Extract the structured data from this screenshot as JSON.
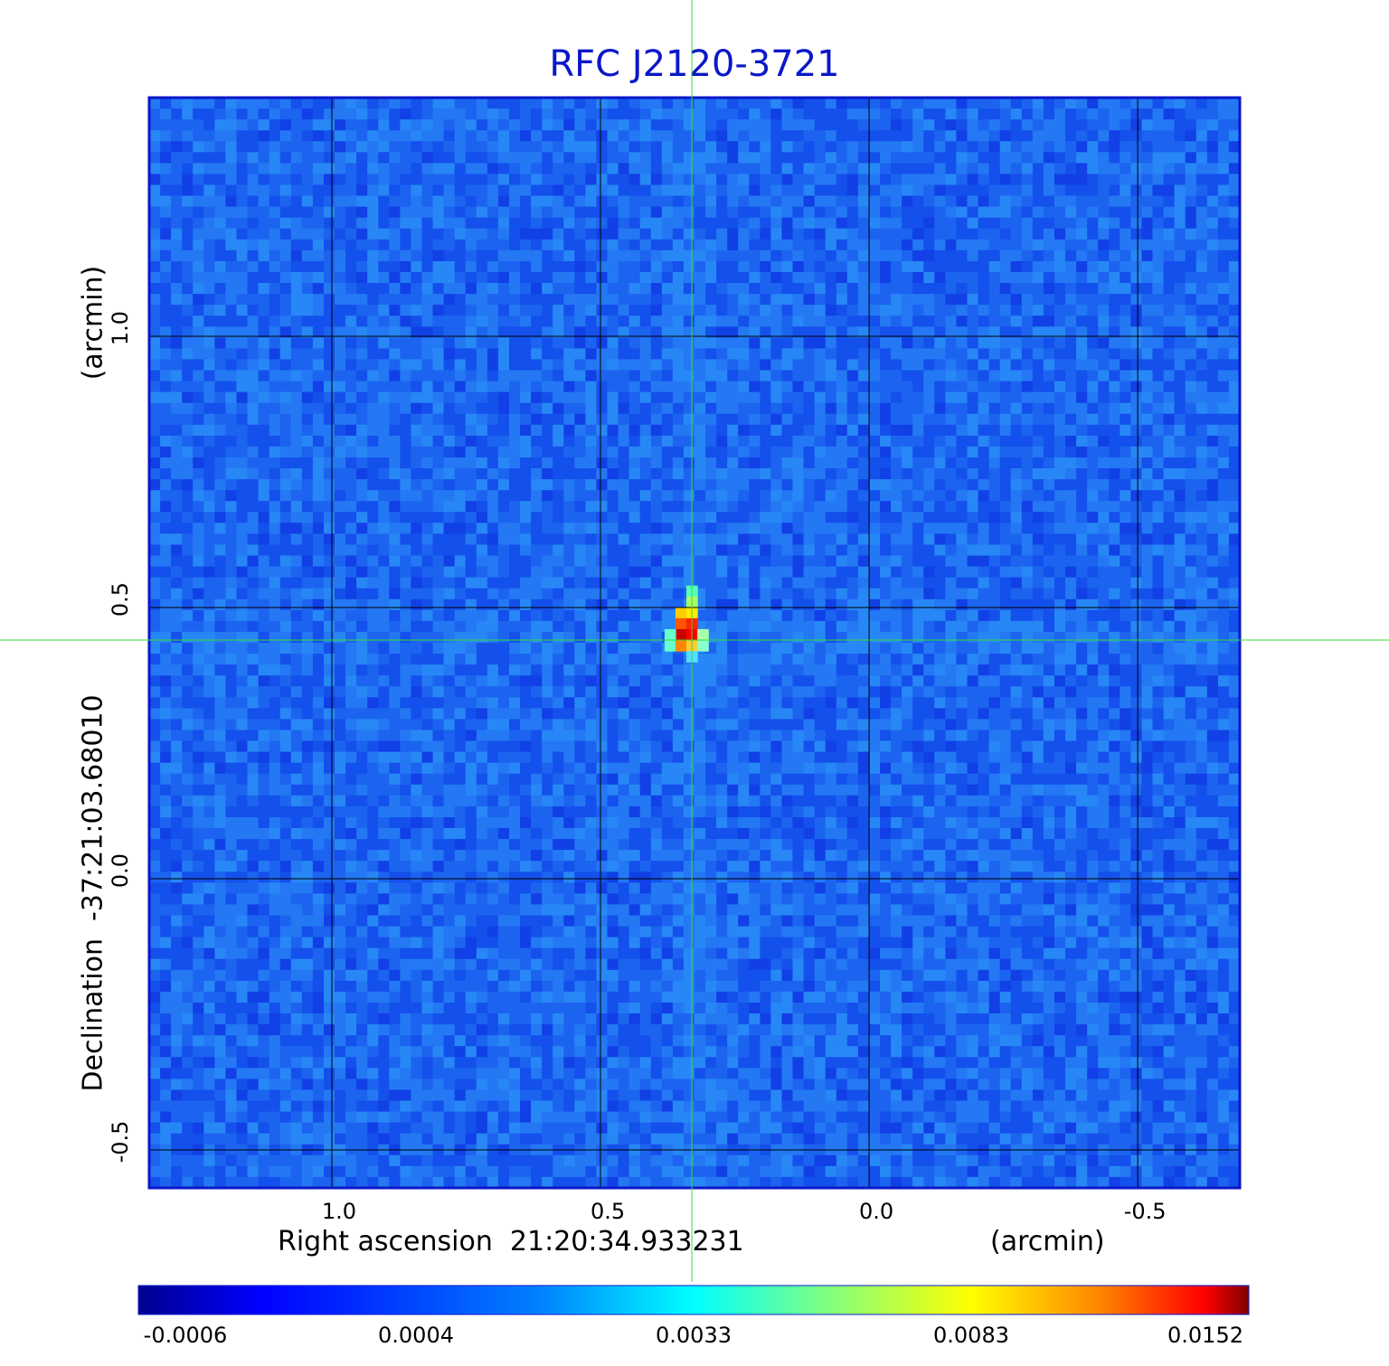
{
  "chart_data": {
    "type": "heatmap",
    "title": "RFC J2120-3721",
    "xlabel": "Right ascension  21:20:34.933231",
    "xunit": "(arcmin)",
    "ylabel": "Declination  -37:21:03.68010",
    "yunit": "(arcmin)",
    "x_ticks": [
      "1.0",
      "0.5",
      "0.0",
      "-0.5"
    ],
    "y_ticks": [
      "1.0",
      "0.5",
      "0.0",
      "-0.5"
    ],
    "xlim": [
      1.34,
      -0.69
    ],
    "ylim": [
      -0.57,
      1.44
    ],
    "x_reversed": true,
    "grid": true,
    "crosshair": {
      "x": 0.33,
      "y": 0.44
    },
    "source_peak": {
      "x": 0.33,
      "y": 0.44,
      "value": 0.0152
    },
    "colorbar": {
      "ticks": [
        "-0.0006",
        "0.0004",
        "0.0033",
        "0.0083",
        "0.0152"
      ],
      "colormap": "jet",
      "scale": "nonlinear",
      "min": -0.0006,
      "max": 0.0152
    },
    "colors": {
      "title": "#0a18c8",
      "frame": "#0a18c8",
      "grid": "#000000",
      "crosshair": "#33dd33"
    }
  }
}
